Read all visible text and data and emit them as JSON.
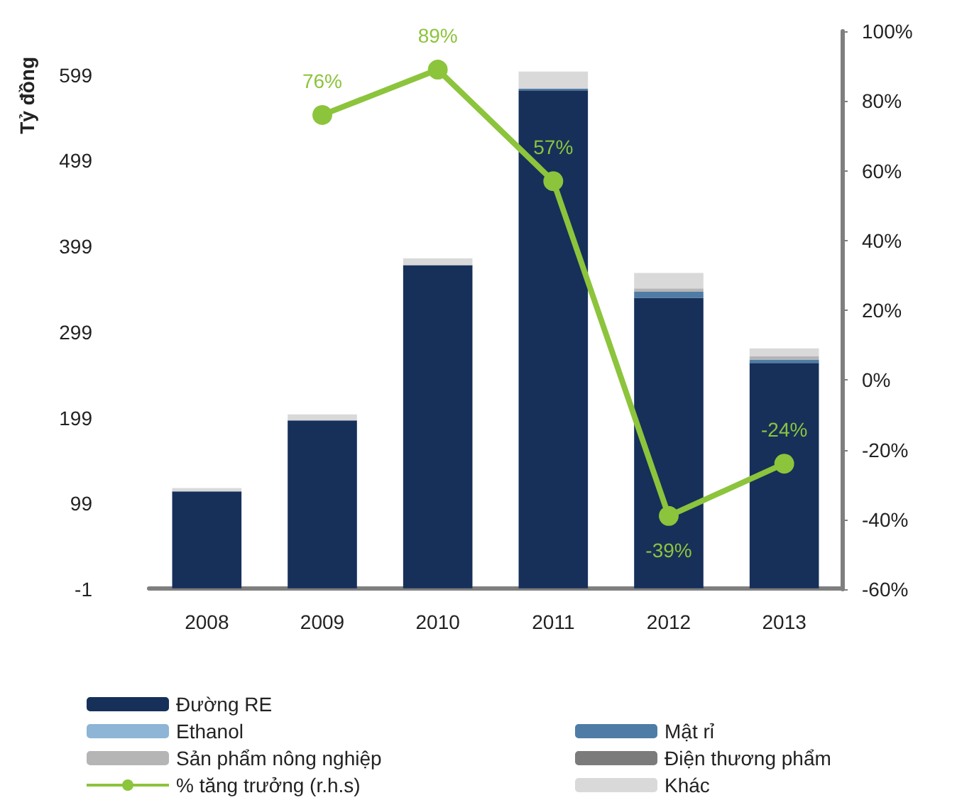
{
  "chart_data": {
    "type": "bar",
    "stacked": true,
    "ylabel": "Tỷ đồng",
    "categories": [
      "2008",
      "2009",
      "2010",
      "2011",
      "2012",
      "2013"
    ],
    "series": [
      {
        "name": "Đường RE",
        "color": "#16305a",
        "values": [
          113,
          196,
          377,
          581,
          339,
          263
        ]
      },
      {
        "name": "Mật rỉ",
        "color": "#4f7ca6",
        "values": [
          0,
          0,
          0,
          2,
          7,
          4
        ]
      },
      {
        "name": "Ethanol",
        "color": "#8eb4d6",
        "values": [
          0,
          0,
          0,
          0,
          0,
          0
        ]
      },
      {
        "name": "Điện thương phẩm",
        "color": "#7b7b7b",
        "values": [
          0,
          0,
          0,
          0,
          0,
          0
        ]
      },
      {
        "name": "Sản phẩm nông nghiệp",
        "color": "#b5b5b5",
        "values": [
          0,
          0,
          0,
          0,
          4,
          4
        ]
      },
      {
        "name": "Khác",
        "color": "#d9d9d9",
        "values": [
          4,
          7,
          8,
          20,
          18,
          9
        ]
      },
      {
        "name": "% tăng trưởng (r.h.s)",
        "type": "line",
        "axis": "y2",
        "color": "#8cc43c",
        "marker": "circle",
        "values": [
          null,
          76,
          89,
          57,
          -39,
          -24
        ],
        "value_labels": [
          null,
          "76%",
          "89%",
          "57%",
          "-39%",
          "-24%"
        ]
      }
    ],
    "ylim": [
      -1,
      650
    ],
    "yticks": [
      -1,
      99,
      199,
      299,
      399,
      499,
      599
    ],
    "y2lim": [
      -60,
      100
    ],
    "y2ticks": [
      {
        "value": -60,
        "label": "-60%"
      },
      {
        "value": -40,
        "label": "-40%"
      },
      {
        "value": -20,
        "label": "-20%"
      },
      {
        "value": 0,
        "label": "0%"
      },
      {
        "value": 20,
        "label": "20%"
      },
      {
        "value": 40,
        "label": "40%"
      },
      {
        "value": 60,
        "label": "60%"
      },
      {
        "value": 80,
        "label": "80%"
      },
      {
        "value": 100,
        "label": "100%"
      }
    ],
    "grid": false,
    "legend": "bottom"
  }
}
